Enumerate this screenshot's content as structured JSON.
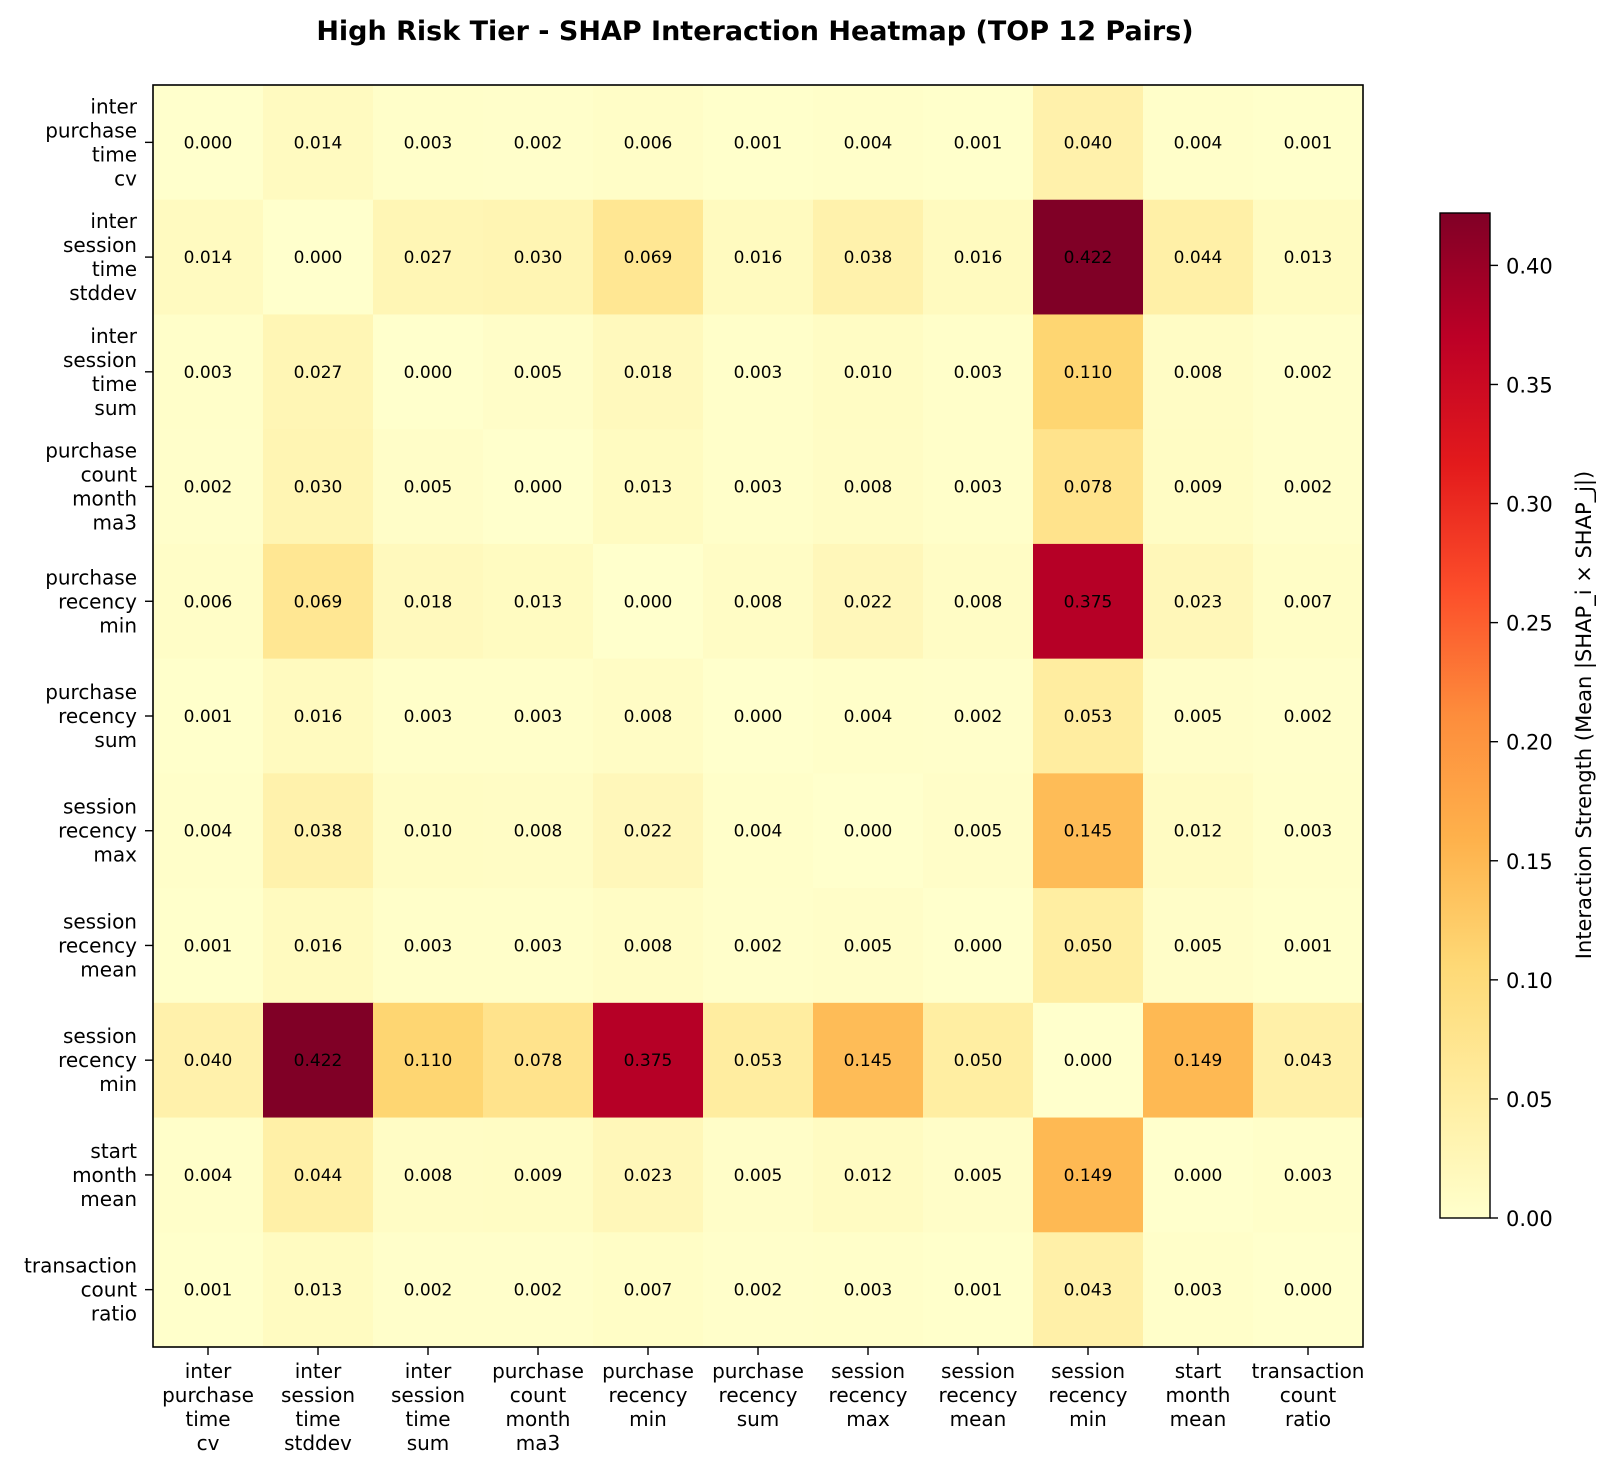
{
  "chart_data": {
    "type": "heatmap",
    "title": "High Risk Tier - SHAP Interaction Heatmap (TOP 12 Pairs)",
    "row_labels": [
      "inter purchase time cv",
      "inter session time stddev",
      "inter session time sum",
      "purchase count month ma3",
      "purchase recency min",
      "purchase recency sum",
      "session recency max",
      "session recency mean",
      "session recency min",
      "start month mean",
      "transaction count ratio"
    ],
    "col_labels": [
      "inter purchase time cv",
      "inter session time stddev",
      "inter session time sum",
      "purchase count month ma3",
      "purchase recency min",
      "purchase recency sum",
      "session recency max",
      "session recency mean",
      "session recency min",
      "start month mean",
      "transaction count ratio"
    ],
    "values": [
      [
        0.0,
        0.014,
        0.003,
        0.002,
        0.006,
        0.001,
        0.004,
        0.001,
        0.04,
        0.004,
        0.001
      ],
      [
        0.014,
        0.0,
        0.027,
        0.03,
        0.069,
        0.016,
        0.038,
        0.016,
        0.422,
        0.044,
        0.013
      ],
      [
        0.003,
        0.027,
        0.0,
        0.005,
        0.018,
        0.003,
        0.01,
        0.003,
        0.11,
        0.008,
        0.002
      ],
      [
        0.002,
        0.03,
        0.005,
        0.0,
        0.013,
        0.003,
        0.008,
        0.003,
        0.078,
        0.009,
        0.002
      ],
      [
        0.006,
        0.069,
        0.018,
        0.013,
        0.0,
        0.008,
        0.022,
        0.008,
        0.375,
        0.023,
        0.007
      ],
      [
        0.001,
        0.016,
        0.003,
        0.003,
        0.008,
        0.0,
        0.004,
        0.002,
        0.053,
        0.005,
        0.002
      ],
      [
        0.004,
        0.038,
        0.01,
        0.008,
        0.022,
        0.004,
        0.0,
        0.005,
        0.145,
        0.012,
        0.003
      ],
      [
        0.001,
        0.016,
        0.003,
        0.003,
        0.008,
        0.002,
        0.005,
        0.0,
        0.05,
        0.005,
        0.001
      ],
      [
        0.04,
        0.422,
        0.11,
        0.078,
        0.375,
        0.053,
        0.145,
        0.05,
        0.0,
        0.149,
        0.043
      ],
      [
        0.004,
        0.044,
        0.008,
        0.009,
        0.023,
        0.005,
        0.012,
        0.005,
        0.149,
        0.0,
        0.003
      ],
      [
        0.001,
        0.013,
        0.002,
        0.002,
        0.007,
        0.002,
        0.003,
        0.001,
        0.043,
        0.003,
        0.0
      ]
    ],
    "value_format": "0.000",
    "colormap": "YlOrRd",
    "colormap_stops": [
      "#ffffcc",
      "#ffeda0",
      "#fed976",
      "#feb24c",
      "#fd8d3c",
      "#fc4e2a",
      "#e31a1c",
      "#bd0026",
      "#800026"
    ],
    "vmin": 0.0,
    "vmax": 0.422,
    "colorbar": {
      "label": "Interaction Strength (Mean |SHAP_i × SHAP_j|)",
      "ticks": [
        0.0,
        0.05,
        0.1,
        0.15,
        0.2,
        0.25,
        0.3,
        0.35,
        0.4
      ],
      "tick_labels": [
        "0.00",
        "0.05",
        "0.10",
        "0.15",
        "0.20",
        "0.25",
        "0.30",
        "0.35",
        "0.40"
      ]
    }
  }
}
